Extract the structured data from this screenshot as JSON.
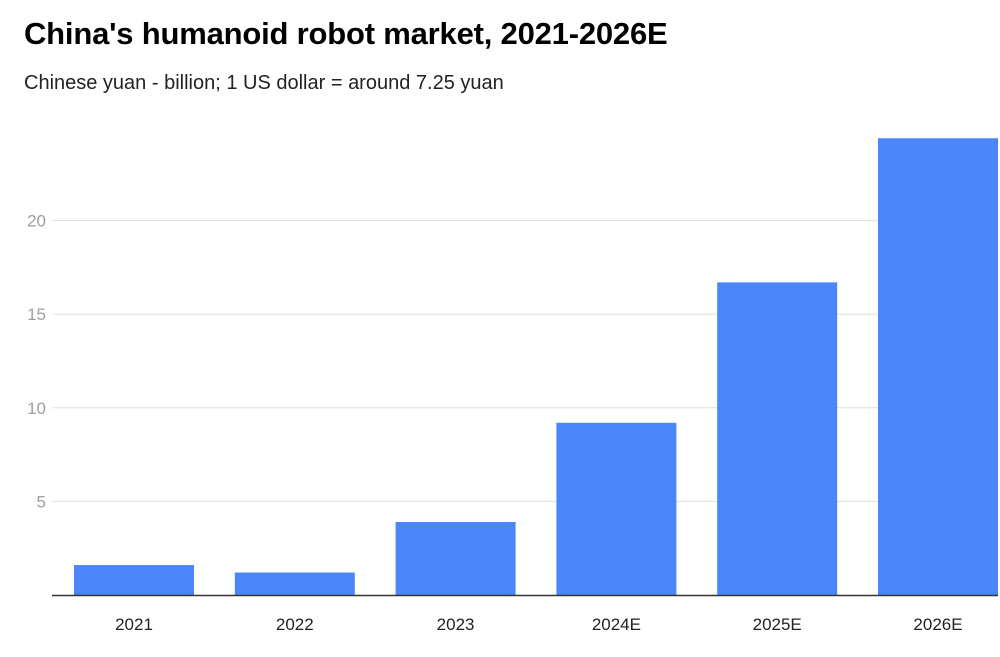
{
  "chart_data": {
    "type": "bar",
    "title": "China's humanoid robot market, 2021-2026E",
    "subtitle": "Chinese yuan - billion; 1 US dollar = around 7.25 yuan",
    "categories": [
      "2021",
      "2022",
      "2023",
      "2024E",
      "2025E",
      "2026E"
    ],
    "values": [
      1.6,
      1.2,
      3.9,
      9.2,
      16.7,
      24.4
    ],
    "ylim": [
      0,
      25
    ],
    "yticks": [
      5,
      10,
      15,
      20
    ],
    "grid": true,
    "colors": {
      "bar": "#4a86f7",
      "grid": "#e0e0e0",
      "axis": "#333333"
    }
  }
}
